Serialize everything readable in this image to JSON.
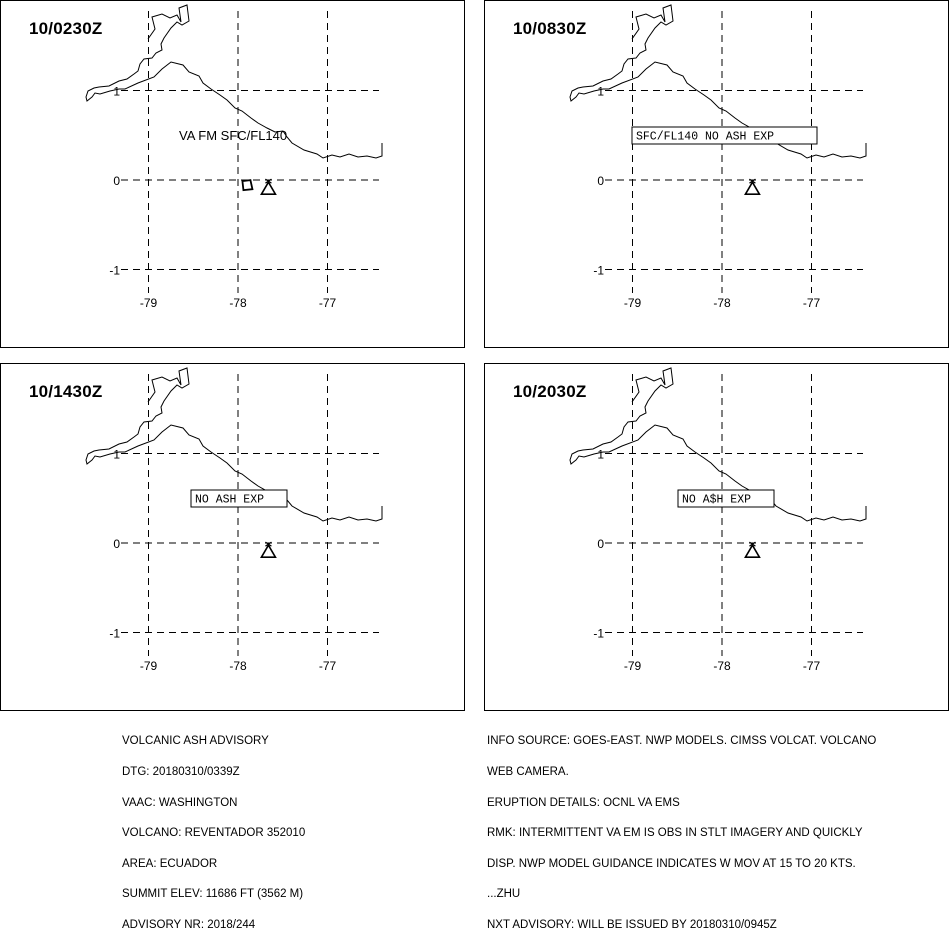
{
  "panels": [
    {
      "time": "10/0230Z",
      "label_type": "plain",
      "label": "VA FM SFC/FL140",
      "ash_area": true
    },
    {
      "time": "10/0830Z",
      "label_type": "boxed",
      "label": "SFC/FL140 NO ASH EXP",
      "ash_area": false
    },
    {
      "time": "10/1430Z",
      "label_type": "boxed",
      "label": "NO ASH EXP",
      "ash_area": false
    },
    {
      "time": "10/2030Z",
      "label_type": "boxed",
      "label": "NO A$H EXP",
      "ash_area": false
    }
  ],
  "axes": {
    "lat_ticks": [
      "1",
      "0",
      "-1"
    ],
    "lon_ticks": [
      "-79",
      "-78",
      "-77"
    ],
    "lat_values": [
      1,
      0,
      -1
    ],
    "lon_values": [
      -79,
      -78,
      -77
    ]
  },
  "volcano": {
    "name": "REVENTADOR",
    "lat": -0.08,
    "lon": -77.66,
    "icon": "volcano-triangle-icon"
  },
  "footer_left": [
    "VOLCANIC ASH ADVISORY",
    "DTG: 20180310/0339Z",
    "VAAC: WASHINGTON",
    "VOLCANO: REVENTADOR 352010",
    "AREA: ECUADOR",
    "SUMMIT ELEV: 11686 FT (3562 M)",
    "ADVISORY NR: 2018/244"
  ],
  "footer_right": [
    "INFO SOURCE: GOES-EAST. NWP MODELS. CIMSS VOLCAT. VOLCANO",
    "WEB CAMERA.",
    "ERUPTION DETAILS: OCNL VA EMS",
    "RMK: INTERMITTENT VA EM IS OBS IN STLT IMAGERY AND QUICKLY",
    "DISP. NWP MODEL GUIDANCE INDICATES W MOV AT 15 TO 20 KTS.",
    "...ZHU",
    "NXT ADVISORY: WILL BE ISSUED BY 20180310/0945Z"
  ]
}
